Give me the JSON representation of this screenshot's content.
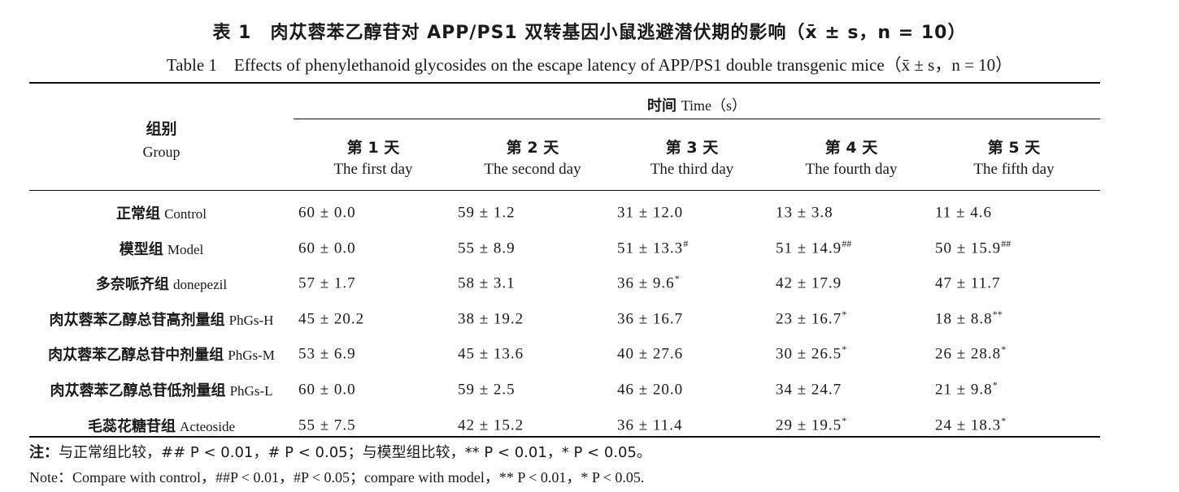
{
  "title_cn": "表 1　肉苁蓉苯乙醇苷对 APP/PS1 双转基因小鼠逃避潜伏期的影响（x̄ ± s，n = 10）",
  "title_en": "Table 1　Effects of phenylethanoid glycosides on the escape latency of APP/PS1 double transgenic mice（x̄ ± s，n = 10）",
  "header": {
    "time_cn": "时间",
    "time_en": "Time（s）",
    "group_cn": "组别",
    "group_en": "Group",
    "days": [
      {
        "cn": "第 1 天",
        "en": "The first day"
      },
      {
        "cn": "第 2 天",
        "en": "The second day"
      },
      {
        "cn": "第 3 天",
        "en": "The third day"
      },
      {
        "cn": "第 4 天",
        "en": "The fourth day"
      },
      {
        "cn": "第 5 天",
        "en": "The fifth day"
      }
    ]
  },
  "rows": [
    {
      "group_cn": "正常组",
      "group_en": "Control",
      "values": [
        [
          "60 ± 0.0",
          ""
        ],
        [
          "59 ± 1.2",
          ""
        ],
        [
          "31 ± 12.0",
          ""
        ],
        [
          "13 ± 3.8",
          ""
        ],
        [
          "11 ± 4.6",
          ""
        ]
      ]
    },
    {
      "group_cn": "模型组",
      "group_en": "Model",
      "values": [
        [
          "60 ± 0.0",
          ""
        ],
        [
          "55 ± 8.9",
          ""
        ],
        [
          "51 ± 13.3",
          "#"
        ],
        [
          "51 ± 14.9",
          "##"
        ],
        [
          "50 ± 15.9",
          "##"
        ]
      ]
    },
    {
      "group_cn": "多奈哌齐组",
      "group_en": "donepezil",
      "values": [
        [
          "57 ± 1.7",
          ""
        ],
        [
          "58 ± 3.1",
          ""
        ],
        [
          "36 ± 9.6",
          "*"
        ],
        [
          "42 ± 17.9",
          ""
        ],
        [
          "47 ± 11.7",
          ""
        ]
      ]
    },
    {
      "group_cn": "肉苁蓉苯乙醇总苷高剂量组",
      "group_en": "PhGs-H",
      "values": [
        [
          "45 ± 20.2",
          ""
        ],
        [
          "38 ± 19.2",
          ""
        ],
        [
          "36 ± 16.7",
          ""
        ],
        [
          "23 ± 16.7",
          "*"
        ],
        [
          "18 ± 8.8",
          "**"
        ]
      ]
    },
    {
      "group_cn": "肉苁蓉苯乙醇总苷中剂量组",
      "group_en": "PhGs-M",
      "values": [
        [
          "53 ± 6.9",
          ""
        ],
        [
          "45 ± 13.6",
          ""
        ],
        [
          "40 ± 27.6",
          ""
        ],
        [
          "30 ± 26.5",
          "*"
        ],
        [
          "26 ± 28.8",
          "*"
        ]
      ]
    },
    {
      "group_cn": "肉苁蓉苯乙醇总苷低剂量组",
      "group_en": "PhGs-L",
      "values": [
        [
          "60 ± 0.0",
          ""
        ],
        [
          "59 ± 2.5",
          ""
        ],
        [
          "46 ± 20.0",
          ""
        ],
        [
          "34 ± 24.7",
          ""
        ],
        [
          "21 ± 9.8",
          "*"
        ]
      ]
    },
    {
      "group_cn": "毛蕊花糖苷组",
      "group_en": "Acteoside",
      "values": [
        [
          "55 ± 7.5",
          ""
        ],
        [
          "42 ± 15.2",
          ""
        ],
        [
          "36 ± 11.4",
          ""
        ],
        [
          "29 ± 19.5",
          "*"
        ],
        [
          "24 ± 18.3",
          "*"
        ]
      ]
    }
  ],
  "note_cn_lead": "注：",
  "note_cn": "与正常组比较，## P < 0.01，# P < 0.05；与模型组比较，** P < 0.01，* P < 0.05。",
  "note_en": "Note：Compare with control，##P < 0.01，#P < 0.05；compare with model，** P < 0.01，* P < 0.05."
}
